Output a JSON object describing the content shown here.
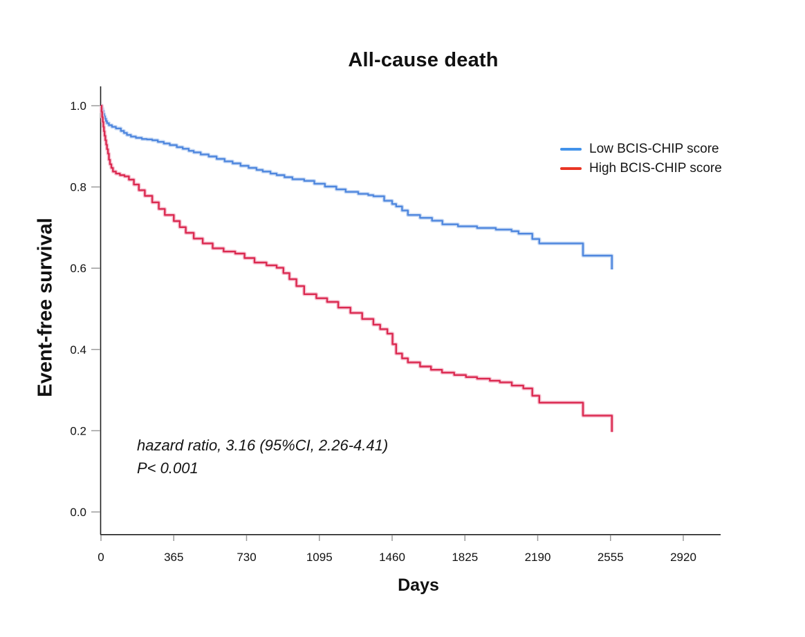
{
  "chart_data": {
    "type": "line",
    "variant": "kaplan-meier-step",
    "title": "All-cause death",
    "xlabel": "Days",
    "ylabel": "Event-free survival",
    "x_ticks": [
      0,
      365,
      730,
      1095,
      1460,
      1825,
      2190,
      2555,
      2920
    ],
    "y_ticks": [
      "0.0",
      "0.2",
      "0.4",
      "0.6",
      "0.8",
      "1.0"
    ],
    "xlim": [
      0,
      3100
    ],
    "ylim": [
      0,
      1.05
    ],
    "grid": false,
    "legend_position": "upper right",
    "annotations": [
      "hazard ratio, 3.16 (95%CI, 2.26-4.41)",
      "P< 0.001"
    ],
    "series": [
      {
        "name": "Low BCIS-CHIP score",
        "line_color": "#4f87de",
        "halo_color": "#c3d7f5",
        "legend_color": "#4292ea",
        "points": [
          [
            0,
            1.0
          ],
          [
            4,
            0.993
          ],
          [
            8,
            0.987
          ],
          [
            12,
            0.98
          ],
          [
            16,
            0.974
          ],
          [
            20,
            0.968
          ],
          [
            25,
            0.962
          ],
          [
            30,
            0.957
          ],
          [
            40,
            0.952
          ],
          [
            55,
            0.948
          ],
          [
            75,
            0.944
          ],
          [
            100,
            0.938
          ],
          [
            115,
            0.933
          ],
          [
            130,
            0.928
          ],
          [
            150,
            0.924
          ],
          [
            175,
            0.921
          ],
          [
            205,
            0.918
          ],
          [
            230,
            0.917
          ],
          [
            257,
            0.915
          ],
          [
            285,
            0.911
          ],
          [
            315,
            0.907
          ],
          [
            345,
            0.903
          ],
          [
            380,
            0.898
          ],
          [
            410,
            0.894
          ],
          [
            440,
            0.889
          ],
          [
            465,
            0.885
          ],
          [
            500,
            0.88
          ],
          [
            540,
            0.875
          ],
          [
            580,
            0.869
          ],
          [
            620,
            0.863
          ],
          [
            660,
            0.858
          ],
          [
            700,
            0.852
          ],
          [
            740,
            0.847
          ],
          [
            780,
            0.842
          ],
          [
            811,
            0.838
          ],
          [
            850,
            0.833
          ],
          [
            881,
            0.829
          ],
          [
            920,
            0.824
          ],
          [
            960,
            0.819
          ],
          [
            1019,
            0.815
          ],
          [
            1070,
            0.808
          ],
          [
            1123,
            0.801
          ],
          [
            1180,
            0.794
          ],
          [
            1227,
            0.788
          ],
          [
            1290,
            0.783
          ],
          [
            1340,
            0.78
          ],
          [
            1366,
            0.777
          ],
          [
            1420,
            0.766
          ],
          [
            1460,
            0.758
          ],
          [
            1480,
            0.752
          ],
          [
            1510,
            0.742
          ],
          [
            1539,
            0.731
          ],
          [
            1600,
            0.724
          ],
          [
            1660,
            0.717
          ],
          [
            1712,
            0.708
          ],
          [
            1790,
            0.703
          ],
          [
            1886,
            0.699
          ],
          [
            1980,
            0.695
          ],
          [
            2059,
            0.691
          ],
          [
            2094,
            0.685
          ],
          [
            2163,
            0.672
          ],
          [
            2198,
            0.661
          ],
          [
            2417,
            0.631
          ],
          [
            2562,
            0.597
          ]
        ]
      },
      {
        "name": "High BCIS-CHIP score",
        "line_color": "#db2a50",
        "halo_color": "#f6b9ca",
        "legend_color": "#e93524",
        "points": [
          [
            0,
            1.0
          ],
          [
            3,
            0.985
          ],
          [
            6,
            0.972
          ],
          [
            9,
            0.96
          ],
          [
            12,
            0.948
          ],
          [
            15,
            0.937
          ],
          [
            18,
            0.926
          ],
          [
            22,
            0.915
          ],
          [
            26,
            0.904
          ],
          [
            30,
            0.893
          ],
          [
            35,
            0.882
          ],
          [
            40,
            0.867
          ],
          [
            45,
            0.856
          ],
          [
            52,
            0.847
          ],
          [
            60,
            0.838
          ],
          [
            75,
            0.833
          ],
          [
            95,
            0.829
          ],
          [
            118,
            0.826
          ],
          [
            140,
            0.818
          ],
          [
            165,
            0.806
          ],
          [
            190,
            0.792
          ],
          [
            220,
            0.778
          ],
          [
            257,
            0.762
          ],
          [
            290,
            0.746
          ],
          [
            320,
            0.731
          ],
          [
            365,
            0.716
          ],
          [
            395,
            0.701
          ],
          [
            425,
            0.687
          ],
          [
            465,
            0.673
          ],
          [
            510,
            0.661
          ],
          [
            560,
            0.649
          ],
          [
            615,
            0.641
          ],
          [
            673,
            0.636
          ],
          [
            720,
            0.625
          ],
          [
            770,
            0.614
          ],
          [
            830,
            0.607
          ],
          [
            881,
            0.601
          ],
          [
            915,
            0.588
          ],
          [
            945,
            0.573
          ],
          [
            980,
            0.556
          ],
          [
            1019,
            0.536
          ],
          [
            1080,
            0.526
          ],
          [
            1134,
            0.517
          ],
          [
            1190,
            0.503
          ],
          [
            1251,
            0.49
          ],
          [
            1310,
            0.475
          ],
          [
            1366,
            0.461
          ],
          [
            1400,
            0.45
          ],
          [
            1436,
            0.439
          ],
          [
            1462,
            0.413
          ],
          [
            1480,
            0.39
          ],
          [
            1510,
            0.378
          ],
          [
            1539,
            0.368
          ],
          [
            1600,
            0.358
          ],
          [
            1655,
            0.35
          ],
          [
            1710,
            0.343
          ],
          [
            1771,
            0.337
          ],
          [
            1830,
            0.332
          ],
          [
            1886,
            0.328
          ],
          [
            1950,
            0.323
          ],
          [
            2000,
            0.319
          ],
          [
            2060,
            0.311
          ],
          [
            2118,
            0.304
          ],
          [
            2163,
            0.286
          ],
          [
            2198,
            0.269
          ],
          [
            2417,
            0.237
          ],
          [
            2562,
            0.197
          ]
        ]
      }
    ]
  }
}
